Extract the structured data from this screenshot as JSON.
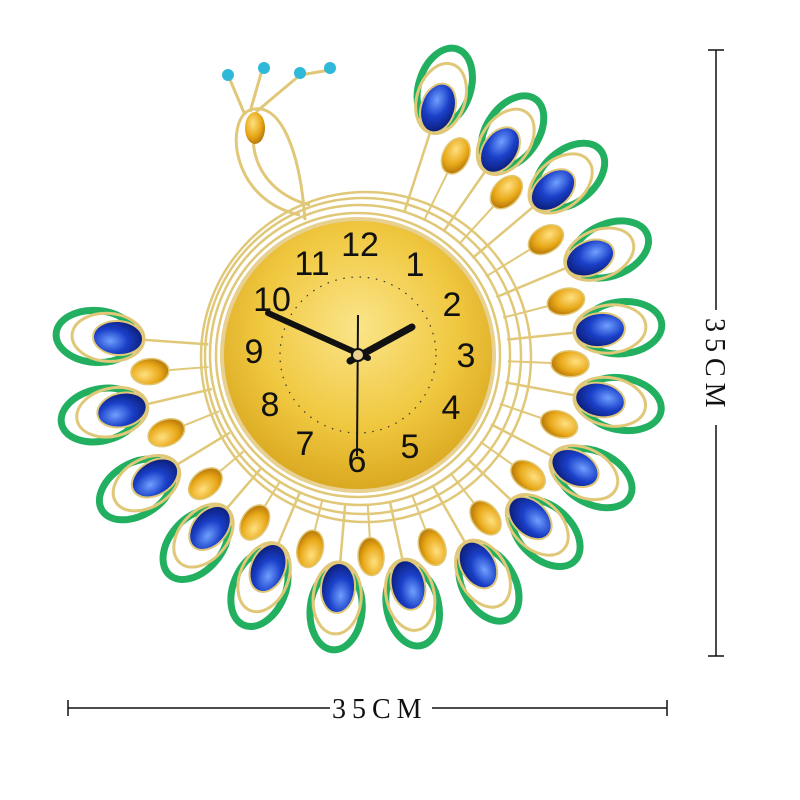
{
  "product": "peacock-wall-clock",
  "clock": {
    "numerals": [
      "12",
      "1",
      "2",
      "3",
      "4",
      "5",
      "6",
      "7",
      "8",
      "9",
      "10",
      "11"
    ],
    "time_shown": "10:09:30"
  },
  "dimensions": {
    "width_label": "35CM",
    "height_label": "35CM"
  },
  "colors": {
    "gold": "#e0c878",
    "face": "#f0c840",
    "blue_gem": "#1a3fc8",
    "amber_gem": "#e8a818",
    "green_trim": "#22b060",
    "turquoise": "#30b8d8"
  }
}
